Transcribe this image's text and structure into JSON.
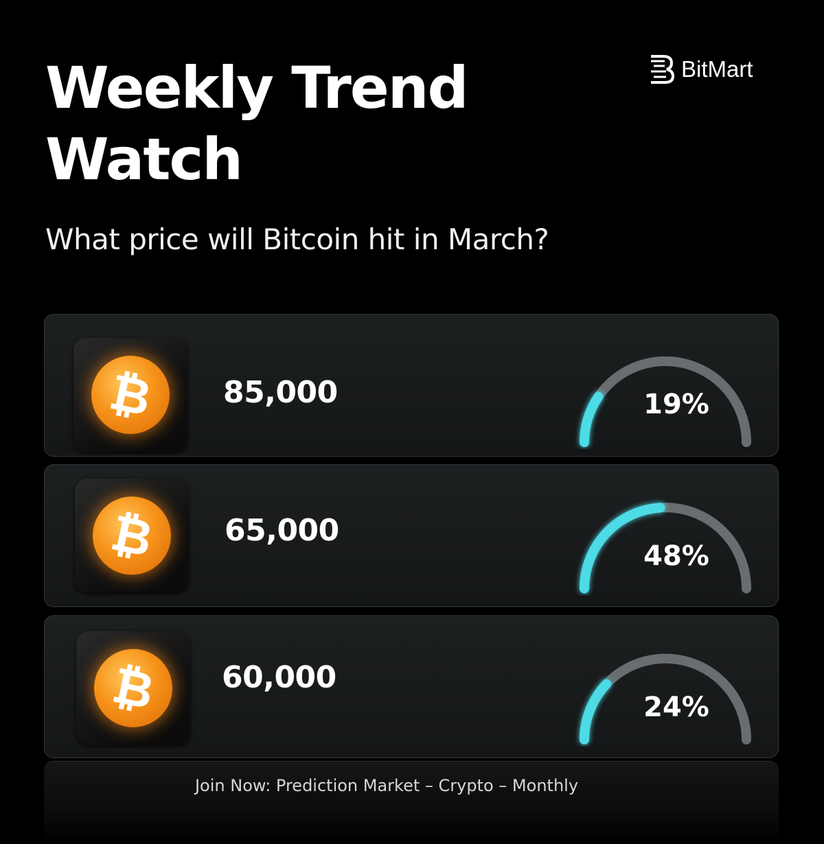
{
  "header": {
    "title": "Weekly Trend Watch",
    "subtitle": "What price will Bitcoin hit in March?"
  },
  "brand": {
    "name": "BitMart",
    "logo_icon": "bitmart-logo-icon"
  },
  "options": [
    {
      "price": "85,000",
      "percent_label": "19%",
      "percent": 19,
      "icon": "bitcoin-icon"
    },
    {
      "price": "65,000",
      "percent_label": "48%",
      "percent": 48,
      "icon": "bitcoin-icon"
    },
    {
      "price": "60,000",
      "percent_label": "24%",
      "percent": 24,
      "icon": "bitcoin-icon"
    }
  ],
  "colors": {
    "gauge_fill": "#4ddbe6",
    "gauge_track": "#6a6d6f",
    "coin": "#f7931a"
  },
  "footer": {
    "text": "Join Now: Prediction Market – Crypto – Monthly"
  }
}
